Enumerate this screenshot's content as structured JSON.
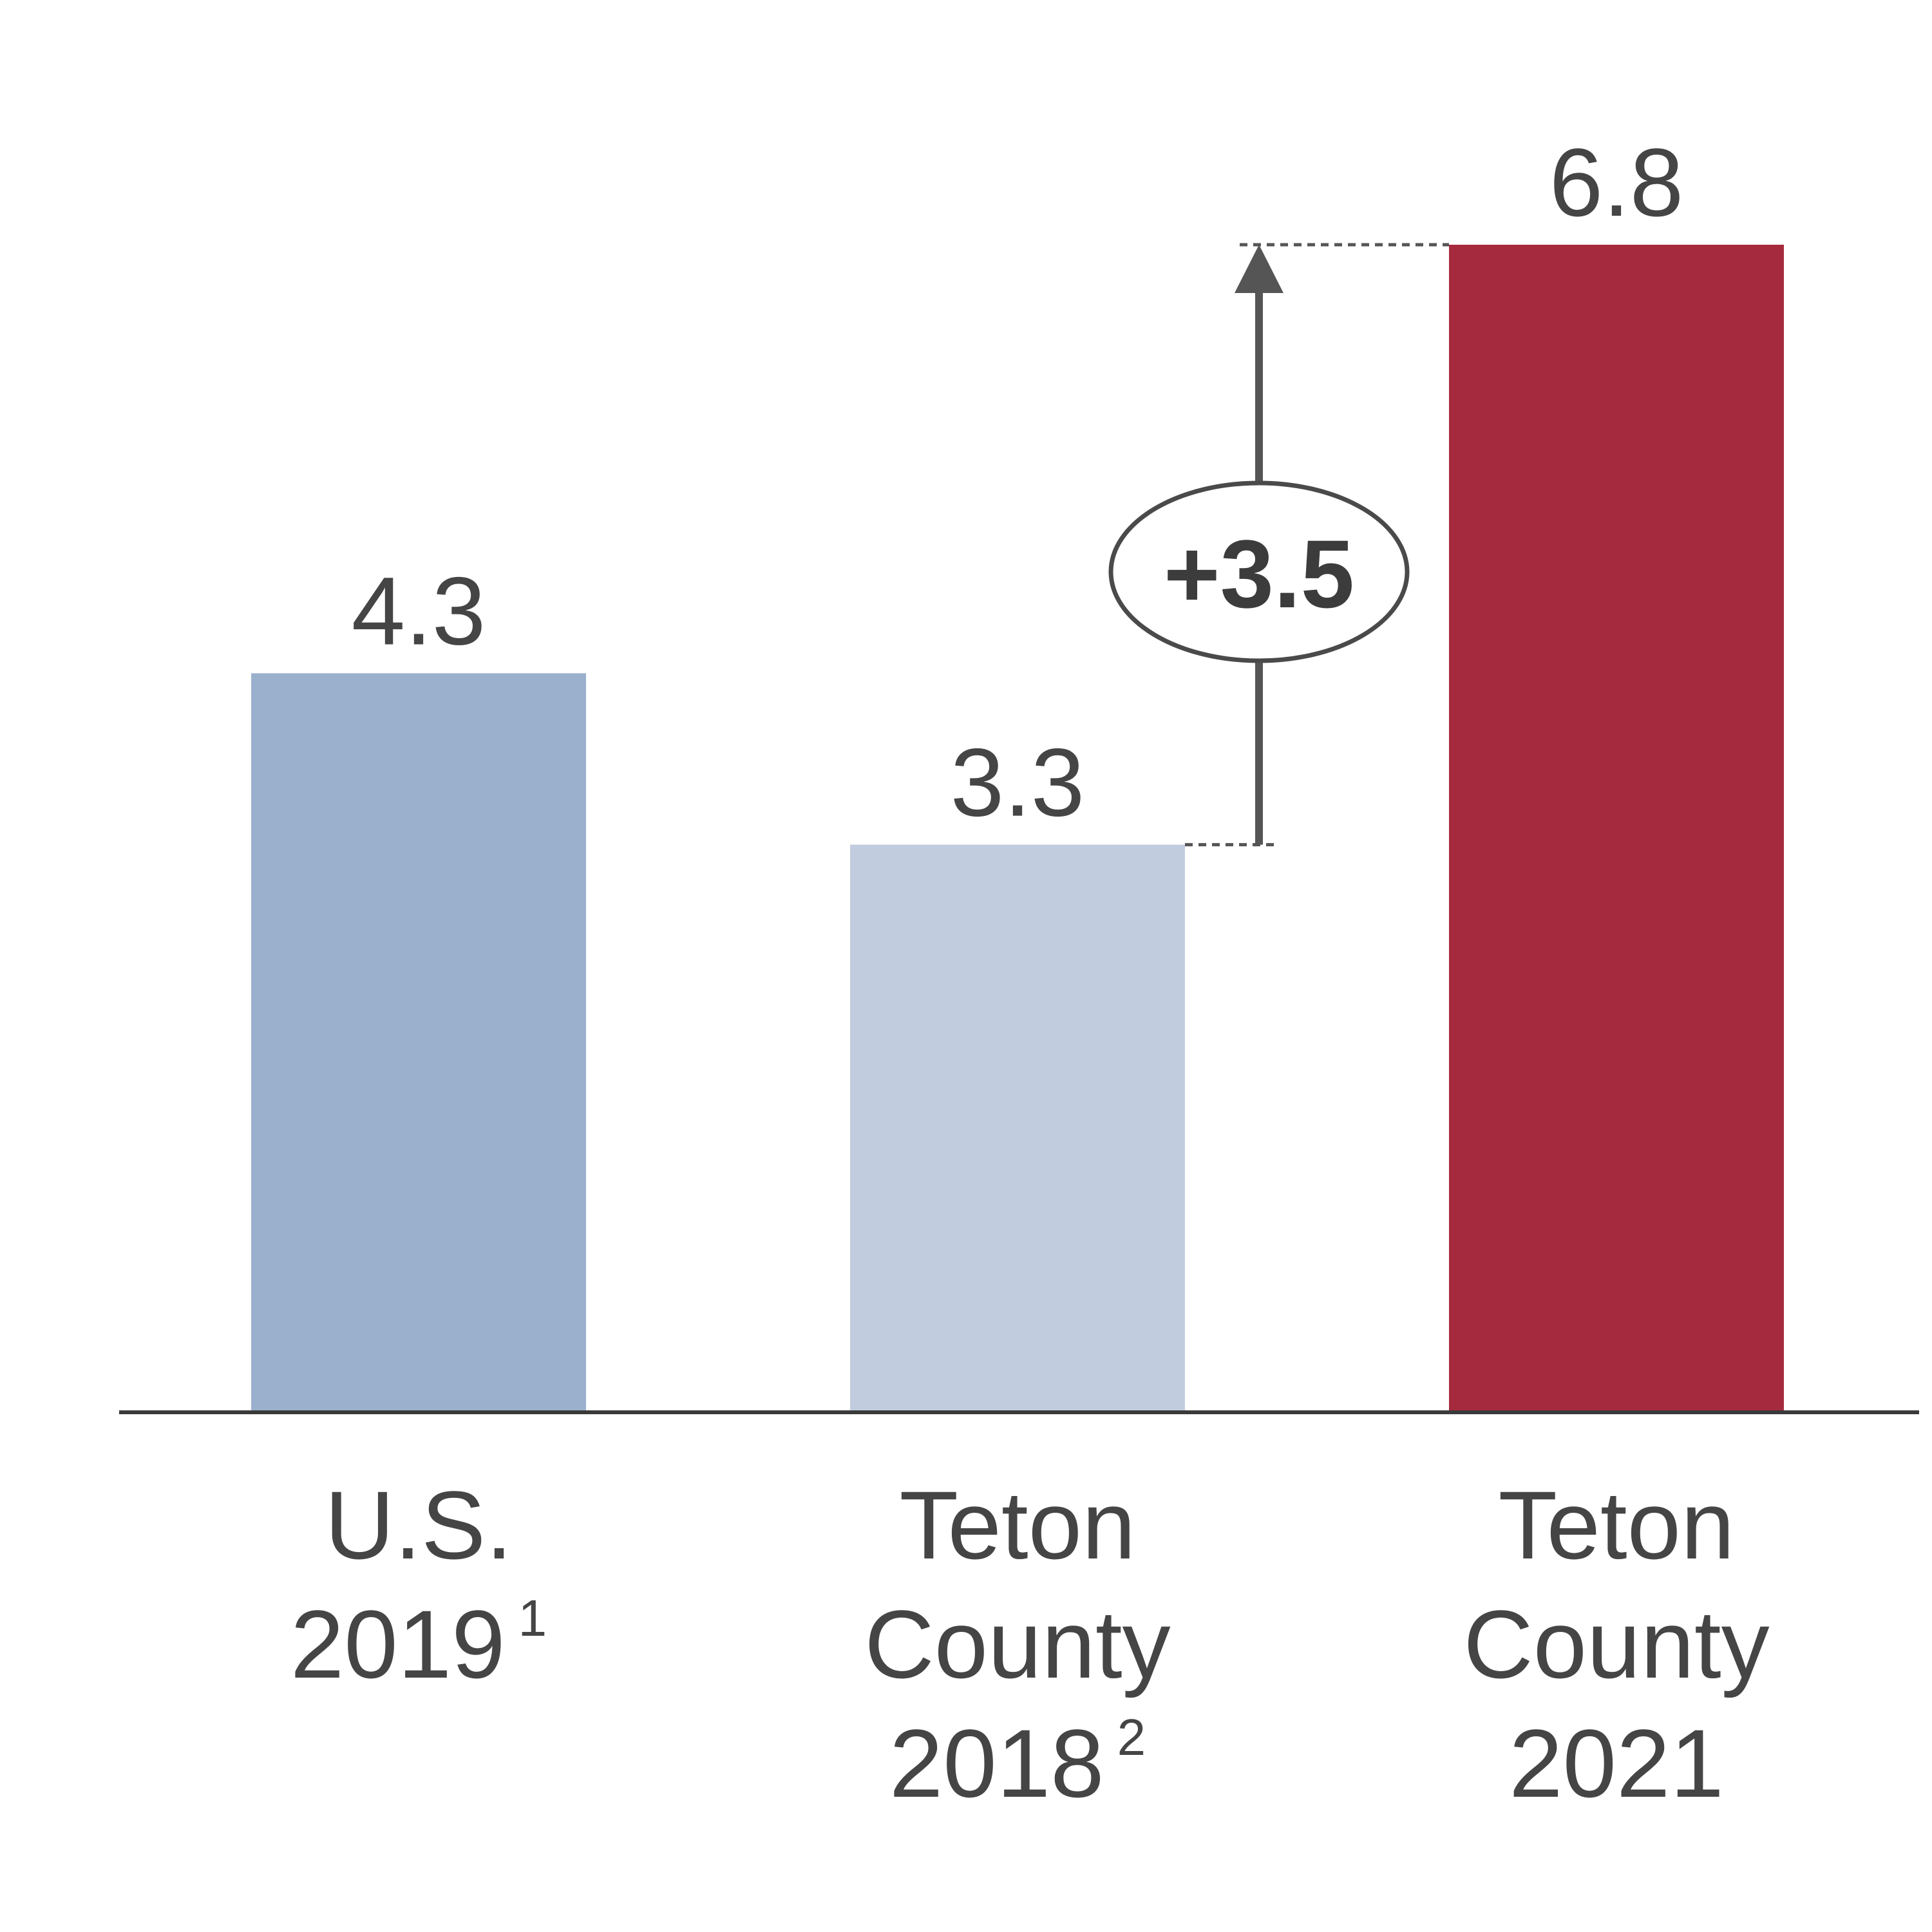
{
  "chart_data": {
    "type": "bar",
    "categories": [
      {
        "lines": [
          "U.S."
        ],
        "last_line": "2019",
        "footnote": "1"
      },
      {
        "lines": [
          "Teton",
          "County"
        ],
        "last_line": "2018",
        "footnote": "2"
      },
      {
        "lines": [
          "Teton",
          "County"
        ],
        "last_line": "2021",
        "footnote": ""
      }
    ],
    "values": [
      4.3,
      3.3,
      6.8
    ],
    "value_labels": [
      "4.3",
      "3.3",
      "6.8"
    ],
    "colors": [
      "#9bb0cd",
      "#c1cddf",
      "#a52a3d"
    ],
    "ylim": [
      0,
      6.8
    ],
    "grid": false,
    "annotation": {
      "text": "+3.5",
      "from_value": 3.3,
      "to_value": 6.8
    }
  }
}
